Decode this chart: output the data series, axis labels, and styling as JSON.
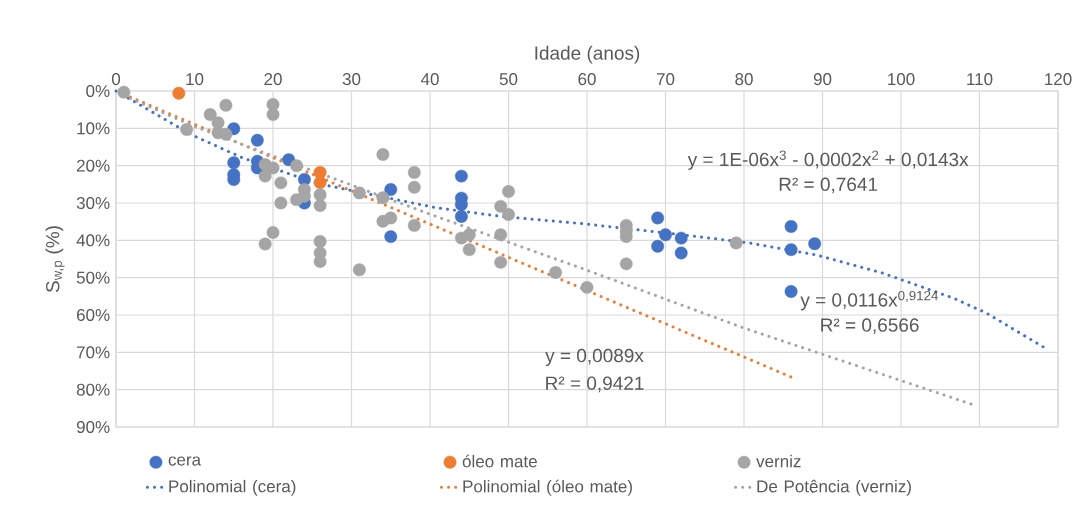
{
  "chart_data": {
    "type": "scatter",
    "xlabel": "Idade (anos)",
    "ylabel": "S$_{w,p}$ (%)",
    "xlim": [
      0,
      120
    ],
    "xticks": [
      0,
      10,
      20,
      30,
      40,
      50,
      60,
      70,
      80,
      90,
      100,
      110,
      120
    ],
    "ylim": [
      90,
      0
    ],
    "yticks": [
      {
        "value": 0,
        "label": "0%"
      },
      {
        "value": 10,
        "label": "10%"
      },
      {
        "value": 20,
        "label": "20%"
      },
      {
        "value": 30,
        "label": "30%"
      },
      {
        "value": 40,
        "label": "40%"
      },
      {
        "value": 50,
        "label": "50%"
      },
      {
        "value": 60,
        "label": "60%"
      },
      {
        "value": 70,
        "label": "70%"
      },
      {
        "value": 80,
        "label": "80%"
      },
      {
        "value": 90,
        "label": "90%"
      }
    ],
    "grid": true,
    "legend": "bottom",
    "marker": "circle",
    "series": [
      {
        "name": "cera",
        "color": "#4472c4",
        "x": [
          15,
          15,
          15,
          15,
          18,
          18,
          18,
          22,
          24,
          24,
          35,
          35,
          44,
          44,
          44,
          44,
          69,
          70,
          69,
          72,
          72,
          86,
          86,
          86,
          89
        ],
        "values": [
          10.1,
          19.2,
          22.4,
          23.7,
          13.2,
          18.8,
          20.6,
          18.4,
          23.7,
          30.0,
          26.4,
          39.0,
          22.8,
          28.7,
          30.4,
          33.6,
          34.0,
          38.5,
          41.6,
          39.4,
          43.4,
          36.3,
          42.5,
          53.7,
          40.9
        ]
      },
      {
        "name": "óleo mate",
        "color": "#ed7d31",
        "x": [
          8,
          26,
          26
        ],
        "values": [
          0.6,
          21.8,
          24.5
        ]
      },
      {
        "name": "verniz",
        "color": "#a5a5a5",
        "x": [
          1,
          9,
          12,
          13,
          14,
          13,
          14,
          20,
          20,
          19,
          19,
          20,
          21,
          21,
          20,
          19,
          23,
          23,
          24,
          24,
          26,
          26,
          26,
          26,
          26,
          31,
          31,
          34,
          34,
          34,
          35,
          38,
          38,
          38,
          44,
          45,
          45,
          49,
          50,
          50,
          49,
          49,
          56,
          60,
          65,
          65,
          65,
          65,
          79
        ],
        "values": [
          0.3,
          10.3,
          6.3,
          8.5,
          3.8,
          11.2,
          11.6,
          3.6,
          6.3,
          19.7,
          22.8,
          20.6,
          24.6,
          30.0,
          37.9,
          41.0,
          20.0,
          29.1,
          26.4,
          28.2,
          27.8,
          30.7,
          40.3,
          43.4,
          45.7,
          27.3,
          47.9,
          17.0,
          28.6,
          34.9,
          34.0,
          21.8,
          25.8,
          36.0,
          39.4,
          38.5,
          42.5,
          30.9,
          26.9,
          33.1,
          38.5,
          45.9,
          48.6,
          52.6,
          36.0,
          37.6,
          39.0,
          46.3,
          40.7
        ]
      },
      {
        "name": "Polinomial (cera)",
        "type": "line",
        "marker": "none",
        "line_style": "dotted",
        "color": "#4472c4",
        "x": [
          0,
          9.6,
          16.1,
          25.7,
          40.6,
          49.1,
          59.3,
          72.1,
          80.7,
          89.2,
          97.7,
          106.7,
          110.9,
          118.8
        ],
        "values": [
          0,
          11.7,
          17.9,
          24.8,
          31.2,
          33.6,
          35.5,
          38.5,
          40.7,
          43.9,
          48.8,
          55.5,
          59.5,
          69.4
        ]
      },
      {
        "name": "Polinomial (óleo mate)",
        "type": "line",
        "marker": "none",
        "line_style": "dotted",
        "color": "#ed7d31",
        "x": [
          1,
          86
        ],
        "values": [
          0.9,
          76.6
        ]
      },
      {
        "name": "De Potência (verniz)",
        "type": "line",
        "marker": "none",
        "line_style": "dotted",
        "color": "#a5a5a5",
        "x": [
          1,
          10,
          20,
          40,
          60,
          80,
          109
        ],
        "values": [
          1.2,
          9.5,
          17.4,
          33,
          48,
          63.5,
          83.9
        ]
      }
    ],
    "annotations": [
      "y = 1E-06x$^{3}$ - 0,0002x$^{2}$ + 0,0143x",
      "R² = 0,7641",
      "y = 0,0116x$^{0,9124}$",
      "R² = 0,6566",
      "y = 0,0089x",
      "R² = 0,9421"
    ]
  }
}
